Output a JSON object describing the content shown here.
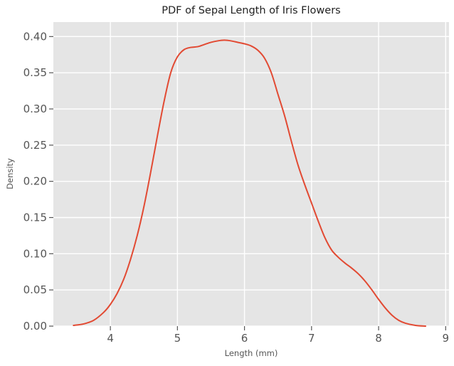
{
  "chart_data": {
    "type": "line",
    "title": "PDF of Sepal Length of Iris Flowers",
    "xlabel": "Length (mm)",
    "ylabel": "Density",
    "xlim": [
      3.15,
      9.05
    ],
    "ylim": [
      0.0,
      0.42
    ],
    "xticks": [
      4,
      5,
      6,
      7,
      8,
      9
    ],
    "yticks": [
      "0.00",
      "0.05",
      "0.10",
      "0.15",
      "0.20",
      "0.25",
      "0.30",
      "0.35",
      "0.40"
    ],
    "grid": true,
    "series": [
      {
        "color": "#e24a33",
        "x": [
          3.45,
          3.6,
          3.75,
          3.9,
          4.0,
          4.1,
          4.2,
          4.3,
          4.4,
          4.5,
          4.6,
          4.7,
          4.8,
          4.9,
          5.0,
          5.1,
          5.2,
          5.3,
          5.4,
          5.5,
          5.6,
          5.7,
          5.8,
          5.9,
          6.0,
          6.1,
          6.2,
          6.3,
          6.4,
          6.5,
          6.6,
          6.7,
          6.8,
          6.9,
          7.0,
          7.1,
          7.2,
          7.3,
          7.4,
          7.5,
          7.6,
          7.7,
          7.8,
          7.9,
          8.0,
          8.1,
          8.2,
          8.3,
          8.4,
          8.55,
          8.7
        ],
        "y": [
          0.001,
          0.003,
          0.008,
          0.019,
          0.03,
          0.045,
          0.065,
          0.092,
          0.125,
          0.165,
          0.212,
          0.262,
          0.31,
          0.35,
          0.372,
          0.382,
          0.385,
          0.386,
          0.389,
          0.392,
          0.394,
          0.395,
          0.394,
          0.392,
          0.39,
          0.387,
          0.381,
          0.37,
          0.35,
          0.32,
          0.29,
          0.255,
          0.222,
          0.195,
          0.17,
          0.145,
          0.122,
          0.105,
          0.095,
          0.087,
          0.08,
          0.072,
          0.062,
          0.05,
          0.037,
          0.025,
          0.015,
          0.008,
          0.004,
          0.001,
          0.0
        ]
      }
    ]
  }
}
